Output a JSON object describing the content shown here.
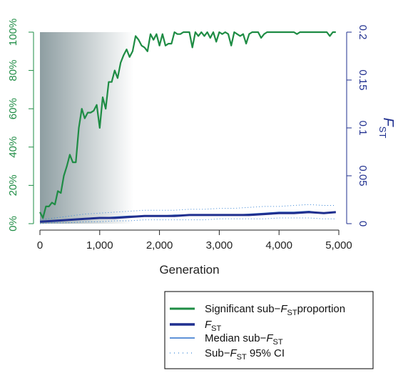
{
  "colors": {
    "green": "#1e8c44",
    "navy": "#1f2f8f",
    "median_blue": "#2a6fcc",
    "ci_blue": "#3a86d6",
    "axis_black": "#222222",
    "shade_dark": "#8e9ea2",
    "shade_light": "#ffffff"
  },
  "chart_data": {
    "type": "line",
    "xlabel": "Generation",
    "xlim": [
      0,
      5000
    ],
    "x_ticks": [
      0,
      1000,
      2000,
      3000,
      4000,
      5000
    ],
    "x_tick_labels": [
      "0",
      "1,000",
      "2,000",
      "3,000",
      "4,000",
      "5,000"
    ],
    "left_axis": {
      "label": "",
      "ylim": [
        0,
        1
      ],
      "ticks": [
        0,
        0.2,
        0.4,
        0.6,
        0.8,
        1.0
      ],
      "tick_labels": [
        "0%",
        "20%",
        "40%",
        "60%",
        "80%",
        "100%"
      ]
    },
    "right_axis": {
      "label_main": "F",
      "label_sub": "ST",
      "ylim": [
        0,
        0.2
      ],
      "ticks": [
        0,
        0.05,
        0.1,
        0.15,
        0.2
      ],
      "tick_labels": [
        "0",
        "0.05",
        "0.1",
        "0.15",
        "0.2"
      ]
    },
    "shaded_region": {
      "x_from": 0,
      "x_to": 1570
    },
    "legend": [
      {
        "pre": "Significant sub−",
        "italic": "F",
        "sub": "ST",
        "post": "proportion",
        "style": "green-thick"
      },
      {
        "pre": "",
        "italic": "F",
        "sub": "ST",
        "post": "",
        "style": "navy-thick"
      },
      {
        "pre": "Median sub−",
        "italic": "F",
        "sub": "ST",
        "post": "",
        "style": "blue-thin"
      },
      {
        "pre": "Sub−",
        "italic": "F",
        "sub": "ST",
        "post": " 95% CI",
        "style": "blue-dotted"
      }
    ],
    "series": [
      {
        "name": "Significant sub−FST proportion",
        "axis": "left",
        "x": [
          0,
          50,
          100,
          150,
          200,
          250,
          300,
          350,
          400,
          450,
          500,
          550,
          600,
          650,
          700,
          750,
          800,
          850,
          900,
          950,
          1000,
          1050,
          1100,
          1150,
          1200,
          1250,
          1300,
          1350,
          1400,
          1450,
          1500,
          1550,
          1600,
          1650,
          1700,
          1750,
          1800,
          1850,
          1900,
          1950,
          2000,
          2050,
          2100,
          2150,
          2200,
          2250,
          2300,
          2350,
          2400,
          2450,
          2500,
          2550,
          2600,
          2650,
          2700,
          2750,
          2800,
          2850,
          2900,
          2950,
          3000,
          3050,
          3100,
          3150,
          3200,
          3250,
          3300,
          3350,
          3400,
          3450,
          3500,
          3550,
          3600,
          3650,
          3700,
          3750,
          3800,
          3850,
          3900,
          3950,
          4000,
          4050,
          4100,
          4150,
          4200,
          4250,
          4300,
          4350,
          4400,
          4450,
          4500,
          4550,
          4600,
          4650,
          4700,
          4750,
          4800,
          4850,
          4900,
          4950
        ],
        "values": [
          0.06,
          0.03,
          0.09,
          0.09,
          0.11,
          0.1,
          0.17,
          0.16,
          0.25,
          0.3,
          0.36,
          0.32,
          0.32,
          0.5,
          0.6,
          0.55,
          0.58,
          0.58,
          0.59,
          0.62,
          0.5,
          0.66,
          0.6,
          0.74,
          0.74,
          0.8,
          0.76,
          0.84,
          0.88,
          0.91,
          0.87,
          0.9,
          0.98,
          0.96,
          0.93,
          0.92,
          0.9,
          0.99,
          0.96,
          0.99,
          0.93,
          0.99,
          0.93,
          0.94,
          0.94,
          1.0,
          0.99,
          0.99,
          1.0,
          1.0,
          1.0,
          0.92,
          1.0,
          0.98,
          1.0,
          0.98,
          1.0,
          0.97,
          1.0,
          0.95,
          1.0,
          0.99,
          1.0,
          0.99,
          0.93,
          1.0,
          0.99,
          0.98,
          0.99,
          0.94,
          0.99,
          1.0,
          1.0,
          1.0,
          0.97,
          0.99,
          1.0,
          1.0,
          1.0,
          1.0,
          1.0,
          1.0,
          1.0,
          1.0,
          1.0,
          1.0,
          0.99,
          1.0,
          1.0,
          1.0,
          1.0,
          1.0,
          1.0,
          1.0,
          1.0,
          1.0,
          1.0,
          0.98,
          1.0,
          1.0
        ]
      },
      {
        "name": "FST",
        "axis": "right",
        "x": [
          0,
          250,
          500,
          750,
          1000,
          1250,
          1500,
          1750,
          2000,
          2250,
          2500,
          2750,
          3000,
          3250,
          3500,
          3750,
          4000,
          4250,
          4500,
          4750,
          4950
        ],
        "values": [
          0.002,
          0.003,
          0.004,
          0.005,
          0.006,
          0.006,
          0.007,
          0.008,
          0.008,
          0.008,
          0.009,
          0.009,
          0.009,
          0.009,
          0.009,
          0.01,
          0.011,
          0.011,
          0.012,
          0.011,
          0.012
        ]
      },
      {
        "name": "Median sub−FST",
        "axis": "right",
        "x": [
          0,
          250,
          500,
          750,
          1000,
          1250,
          1500,
          1750,
          2000,
          2250,
          2500,
          2750,
          3000,
          3250,
          3500,
          3750,
          4000,
          4250,
          4500,
          4750,
          4950
        ],
        "values": [
          0.002,
          0.003,
          0.004,
          0.005,
          0.006,
          0.007,
          0.008,
          0.008,
          0.008,
          0.009,
          0.009,
          0.009,
          0.009,
          0.009,
          0.01,
          0.011,
          0.012,
          0.012,
          0.013,
          0.011,
          0.012
        ]
      },
      {
        "name": "Sub−FST 95% CI upper",
        "axis": "right",
        "x": [
          0,
          250,
          500,
          750,
          1000,
          1250,
          1500,
          1750,
          2000,
          2250,
          2500,
          2750,
          3000,
          3250,
          3500,
          3750,
          4000,
          4250,
          4500,
          4750,
          4950
        ],
        "values": [
          0.004,
          0.006,
          0.008,
          0.01,
          0.011,
          0.012,
          0.013,
          0.014,
          0.014,
          0.014,
          0.015,
          0.015,
          0.016,
          0.016,
          0.017,
          0.018,
          0.018,
          0.019,
          0.02,
          0.019,
          0.019
        ]
      },
      {
        "name": "Sub−FST 95% CI lower",
        "axis": "right",
        "x": [
          0,
          250,
          500,
          750,
          1000,
          1250,
          1500,
          1750,
          2000,
          2250,
          2500,
          2750,
          3000,
          3250,
          3500,
          3750,
          4000,
          4250,
          4500,
          4750,
          4950
        ],
        "values": [
          0.0,
          0.001,
          0.001,
          0.002,
          0.002,
          0.003,
          0.003,
          0.004,
          0.004,
          0.004,
          0.004,
          0.004,
          0.005,
          0.005,
          0.005,
          0.005,
          0.006,
          0.006,
          0.006,
          0.005,
          0.005
        ]
      }
    ]
  }
}
